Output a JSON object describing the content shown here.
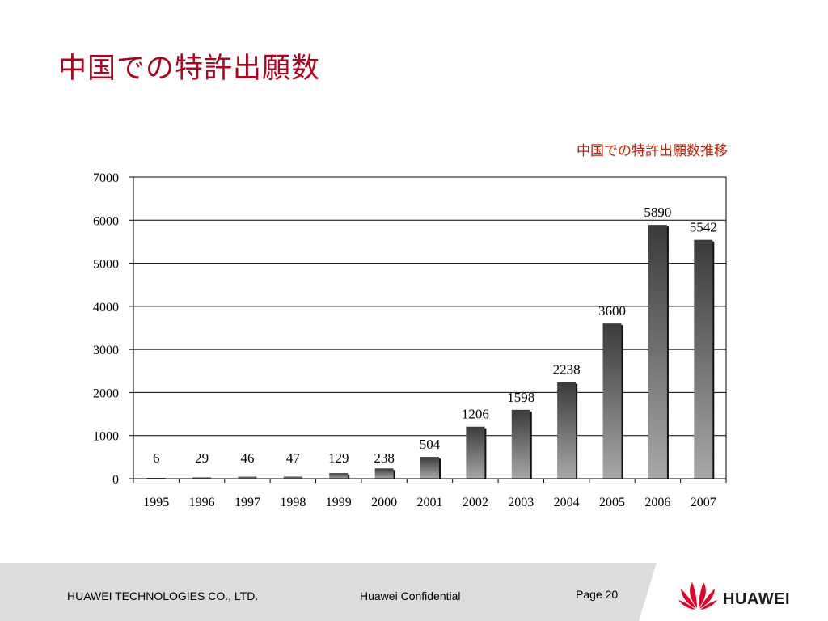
{
  "slide": {
    "title": "中国での特許出願数"
  },
  "chart_data": {
    "type": "bar",
    "title": "中国での特許出願数推移",
    "xlabel": "",
    "ylabel": "",
    "ylim": [
      0,
      7000
    ],
    "yticks": [
      0,
      1000,
      2000,
      3000,
      4000,
      5000,
      6000,
      7000
    ],
    "grid": true,
    "categories": [
      "1995",
      "1996",
      "1997",
      "1998",
      "1999",
      "2000",
      "2001",
      "2002",
      "2003",
      "2004",
      "2005",
      "2006",
      "2007"
    ],
    "values": [
      6,
      29,
      46,
      47,
      129,
      238,
      504,
      1206,
      1598,
      2238,
      3600,
      5890,
      5542
    ],
    "bar_color_top": "#3a3a3a",
    "bar_color_bottom": "#a8a8a8"
  },
  "footer": {
    "company": "HUAWEI TECHNOLOGIES CO., LTD.",
    "confidential": "Huawei Confidential",
    "page": "Page 20",
    "logo_text": "HUAWEI",
    "logo_color": "#e4002b"
  }
}
